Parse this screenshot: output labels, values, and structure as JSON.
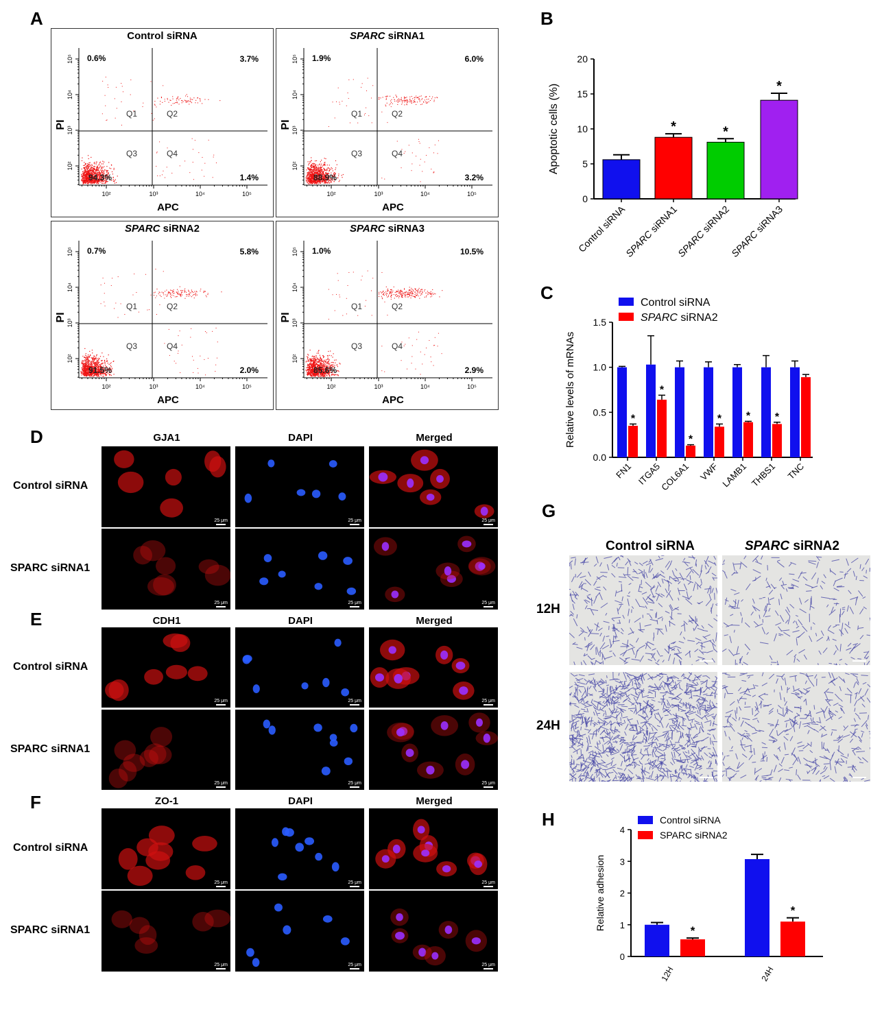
{
  "panels": {
    "A": "A",
    "B": "B",
    "C": "C",
    "D": "D",
    "E": "E",
    "F": "F",
    "G": "G",
    "H": "H"
  },
  "flow": {
    "x_axis_label": "APC",
    "y_axis_label": "PI",
    "quadrants": [
      "Q1",
      "Q2",
      "Q3",
      "Q4"
    ],
    "x_ticks": [
      "10²",
      "10³",
      "10⁴",
      "10⁵"
    ],
    "y_ticks": [
      "10²",
      "10³",
      "10⁴",
      "10⁵"
    ],
    "plots": [
      {
        "title_italic": "",
        "title_rest": "Control siRNA",
        "q1": "0.6%",
        "q2": "3.7%",
        "q3": "94.3%",
        "q4": "1.4%",
        "q2_density": 70,
        "q3_density": 900
      },
      {
        "title_italic": "SPARC",
        "title_rest": " siRNA1",
        "q1": "1.9%",
        "q2": "6.0%",
        "q3": "88.9%",
        "q4": "3.2%",
        "q2_density": 130,
        "q3_density": 900
      },
      {
        "title_italic": "SPARC",
        "title_rest": " siRNA2",
        "q1": "0.7%",
        "q2": "5.8%",
        "q3": "91.5%",
        "q4": "2.0%",
        "q2_density": 120,
        "q3_density": 900
      },
      {
        "title_italic": "SPARC",
        "title_rest": " siRNA3",
        "q1": "1.0%",
        "q2": "10.5%",
        "q3": "85.6%",
        "q4": "2.9%",
        "q2_density": 220,
        "q3_density": 900
      }
    ]
  },
  "chart_data": [
    {
      "type": "bar",
      "panel": "B",
      "ylabel": "Apoptotic cells (%)",
      "ylim": [
        0,
        20
      ],
      "yticks": [
        0,
        5,
        10,
        15,
        20
      ],
      "categories": [
        {
          "italic": "",
          "rest": "Control siRNA"
        },
        {
          "italic": "SPARC",
          "rest": " siRNA1"
        },
        {
          "italic": "SPARC",
          "rest": " siRNA2"
        },
        {
          "italic": "SPARC",
          "rest": " siRNA3"
        }
      ],
      "values": [
        5.6,
        8.8,
        8.1,
        14.1
      ],
      "errors": [
        0.7,
        0.5,
        0.5,
        1.0
      ],
      "colors": [
        "#1010ee",
        "#ff0000",
        "#00cc00",
        "#a020f0"
      ],
      "significance": [
        "",
        "*",
        "*",
        "*"
      ]
    },
    {
      "type": "bar",
      "panel": "C",
      "ylabel": "Relative levels of mRNAs",
      "ylim": [
        0,
        1.5
      ],
      "yticks": [
        "0.0",
        "0.5",
        "1.0",
        "1.5"
      ],
      "categories": [
        "FN1",
        "ITGA5",
        "COL6A1",
        "VWF",
        "LAMB1",
        "THBS1",
        "TNC"
      ],
      "series": [
        {
          "name": "Control siRNA",
          "italic": "",
          "color": "#1010ee",
          "values": [
            1.0,
            1.03,
            1.0,
            1.0,
            1.0,
            1.0,
            1.0
          ],
          "errors": [
            0.01,
            0.32,
            0.07,
            0.06,
            0.03,
            0.13,
            0.07
          ]
        },
        {
          "name": " siRNA2",
          "italic": "SPARC",
          "color": "#ff0000",
          "values": [
            0.35,
            0.64,
            0.13,
            0.34,
            0.39,
            0.37,
            0.89
          ],
          "errors": [
            0.02,
            0.05,
            0.01,
            0.03,
            0.01,
            0.02,
            0.03
          ]
        }
      ],
      "significance": [
        "*",
        "*",
        "*",
        "*",
        "*",
        "*",
        ""
      ]
    },
    {
      "type": "bar",
      "panel": "H",
      "ylabel": "Relative adhesion",
      "ylim": [
        0,
        4
      ],
      "yticks": [
        0,
        1,
        2,
        3,
        4
      ],
      "categories": [
        "12H",
        "24H"
      ],
      "series": [
        {
          "name": "Control siRNA",
          "color": "#1010ee",
          "values": [
            1.0,
            3.07
          ],
          "errors": [
            0.07,
            0.15
          ]
        },
        {
          "name": "SPARC siRNA2",
          "color": "#ff0000",
          "values": [
            0.54,
            1.1
          ],
          "errors": [
            0.04,
            0.12
          ]
        }
      ],
      "significance": [
        "*",
        "*"
      ]
    }
  ],
  "if_panels": [
    {
      "panel": "D",
      "columns": [
        "GJA1",
        "DAPI",
        "Merged"
      ],
      "rows": [
        "Control siRNA",
        "SPARC siRNA1"
      ],
      "scale": "25 μm"
    },
    {
      "panel": "E",
      "columns": [
        "CDH1",
        "DAPI",
        "Merged"
      ],
      "rows": [
        "Control siRNA",
        "SPARC siRNA1"
      ],
      "scale": "25 μm"
    },
    {
      "panel": "F",
      "columns": [
        "ZO-1",
        "DAPI",
        "Merged"
      ],
      "rows": [
        "Control siRNA",
        "SPARC siRNA1"
      ],
      "scale": "25 μm"
    }
  ],
  "adhesion_images": {
    "col1": "Control siRNA",
    "col2_italic": "SPARC",
    "col2_rest": " siRNA2",
    "rows": [
      "12H",
      "24H"
    ],
    "densities": [
      [
        420,
        260
      ],
      [
        1100,
        420
      ]
    ]
  }
}
